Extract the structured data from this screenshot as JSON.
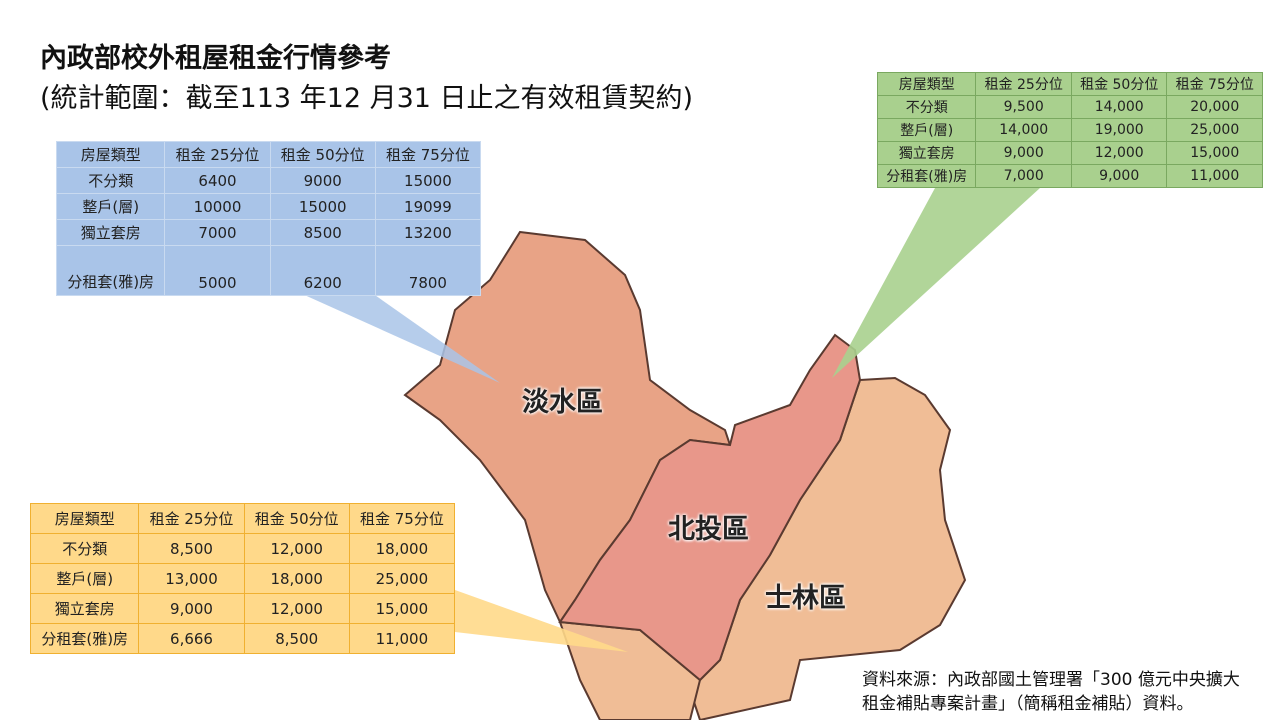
{
  "title": "內政部校外租屋租金行情參考",
  "subtitle": "(統計範圍：截至113 年12 月31 日止之有效租賃契約)",
  "colors": {
    "tamsui": "#e8a386",
    "beitou": "#e8978a",
    "shilin": "#f0bd96",
    "blue_table": "#a9c4e8",
    "green_table": "#a9d08e",
    "yellow_table": "#ffd98a"
  },
  "districts": {
    "tamsui": "淡水區",
    "beitou": "北投區",
    "shilin": "士林區"
  },
  "tables": {
    "tamsui": {
      "headers": [
        "房屋類型",
        "租金 25分位",
        "租金 50分位",
        "租金 75分位"
      ],
      "rows": [
        [
          "不分類",
          "6400",
          "9000",
          "15000"
        ],
        [
          "整戶(層)",
          "10000",
          "15000",
          "19099"
        ],
        [
          "獨立套房",
          "7000",
          "8500",
          "13200"
        ],
        [
          "分租套(雅)房",
          "5000",
          "6200",
          "7800"
        ]
      ]
    },
    "beitou": {
      "headers": [
        "房屋類型",
        "租金 25分位",
        "租金 50分位",
        "租金 75分位"
      ],
      "rows": [
        [
          "不分類",
          "9,500",
          "14,000",
          "20,000"
        ],
        [
          "整戶(層)",
          "14,000",
          "19,000",
          "25,000"
        ],
        [
          "獨立套房",
          "9,000",
          "12,000",
          "15,000"
        ],
        [
          "分租套(雅)房",
          "7,000",
          "9,000",
          "11,000"
        ]
      ]
    },
    "shilin": {
      "headers": [
        "房屋類型",
        "租金 25分位",
        "租金 50分位",
        "租金 75分位"
      ],
      "rows": [
        [
          "不分類",
          "8,500",
          "12,000",
          "18,000"
        ],
        [
          "整戶(層)",
          "13,000",
          "18,000",
          "25,000"
        ],
        [
          "獨立套房",
          "9,000",
          "12,000",
          "15,000"
        ],
        [
          "分租套(雅)房",
          "6,666",
          "8,500",
          "11,000"
        ]
      ]
    }
  },
  "source": {
    "line1": "資料來源：內政部國土管理署「300 億元中央擴大",
    "line2": "租金補貼專案計畫」（簡稱租金補貼）資料。"
  }
}
